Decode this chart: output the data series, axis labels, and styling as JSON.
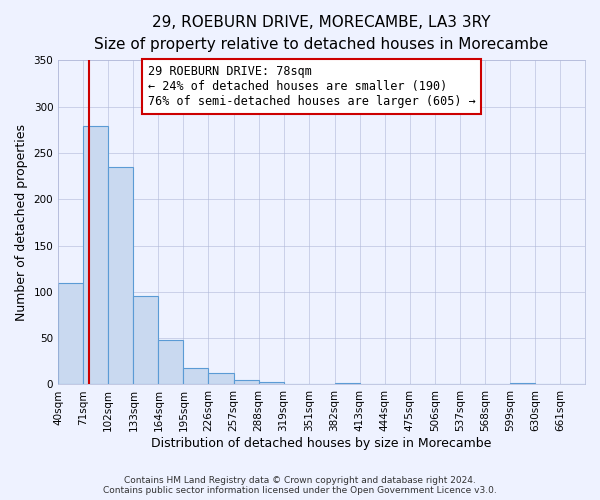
{
  "title": "29, ROEBURN DRIVE, MORECAMBE, LA3 3RY",
  "subtitle": "Size of property relative to detached houses in Morecambe",
  "xlabel": "Distribution of detached houses by size in Morecambe",
  "ylabel": "Number of detached properties",
  "bin_labels": [
    "40sqm",
    "71sqm",
    "102sqm",
    "133sqm",
    "164sqm",
    "195sqm",
    "226sqm",
    "257sqm",
    "288sqm",
    "319sqm",
    "351sqm",
    "382sqm",
    "413sqm",
    "444sqm",
    "475sqm",
    "506sqm",
    "537sqm",
    "568sqm",
    "599sqm",
    "630sqm",
    "661sqm"
  ],
  "bin_values": [
    110,
    279,
    235,
    95,
    48,
    18,
    12,
    5,
    3,
    0,
    0,
    2,
    0,
    0,
    0,
    0,
    0,
    0,
    2,
    0,
    0
  ],
  "bar_color": "#c9d9f0",
  "bar_edge_color": "#5b9bd5",
  "property_line_x": 78,
  "bin_edges": [
    40,
    71,
    102,
    133,
    164,
    195,
    226,
    257,
    288,
    319,
    351,
    382,
    413,
    444,
    475,
    506,
    537,
    568,
    599,
    630,
    661,
    692
  ],
  "ylim": [
    0,
    350
  ],
  "yticks": [
    0,
    50,
    100,
    150,
    200,
    250,
    300,
    350
  ],
  "annotation_text": "29 ROEBURN DRIVE: 78sqm\n← 24% of detached houses are smaller (190)\n76% of semi-detached houses are larger (605) →",
  "annotation_box_color": "#ffffff",
  "annotation_box_edge_color": "#cc0000",
  "footer_line1": "Contains HM Land Registry data © Crown copyright and database right 2024.",
  "footer_line2": "Contains public sector information licensed under the Open Government Licence v3.0.",
  "background_color": "#eef2ff",
  "grid_color": "#b0b8d8",
  "red_line_color": "#cc0000",
  "title_fontsize": 11,
  "subtitle_fontsize": 9.5,
  "axis_label_fontsize": 9,
  "tick_fontsize": 7.5,
  "annotation_fontsize": 8.5,
  "footer_fontsize": 6.5
}
